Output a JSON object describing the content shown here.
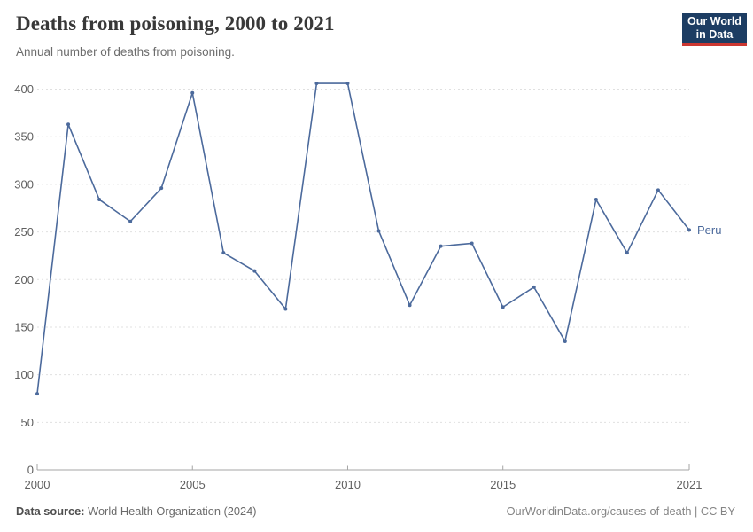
{
  "header": {
    "title": "Deaths from poisoning, 2000 to 2021",
    "subtitle": "Annual number of deaths from poisoning.",
    "logo": {
      "line1": "Our World",
      "line2": "in Data"
    }
  },
  "chart_data": {
    "type": "line",
    "title": "Deaths from poisoning, 2000 to 2021",
    "xlabel": "",
    "ylabel": "",
    "x": [
      2000,
      2001,
      2002,
      2003,
      2004,
      2005,
      2006,
      2007,
      2008,
      2009,
      2010,
      2011,
      2012,
      2013,
      2014,
      2015,
      2016,
      2017,
      2018,
      2019,
      2020,
      2021
    ],
    "series": [
      {
        "name": "Peru",
        "color": "#4C6A9C",
        "values": [
          80,
          363,
          284,
          261,
          296,
          396,
          228,
          209,
          169,
          406,
          406,
          251,
          173,
          235,
          238,
          171,
          192,
          135,
          284,
          228,
          294,
          252
        ]
      }
    ],
    "x_ticks": [
      2000,
      2005,
      2010,
      2015,
      2021
    ],
    "y_ticks": [
      0,
      50,
      100,
      150,
      200,
      250,
      300,
      350,
      400
    ],
    "ylim": [
      0,
      420
    ],
    "grid": "horizontal-dashed",
    "legend_position": "end-of-line"
  },
  "footer": {
    "source_label": "Data source:",
    "source_value": "World Health Organization (2024)",
    "link": "OurWorldinData.org/causes-of-death | CC BY"
  },
  "colors": {
    "line": "#4C6A9C",
    "grid": "#e0e0e0",
    "axis": "#a5a5a5",
    "tick_text": "#606060",
    "logo_bg": "#1d3d63",
    "logo_red": "#cc3731"
  }
}
